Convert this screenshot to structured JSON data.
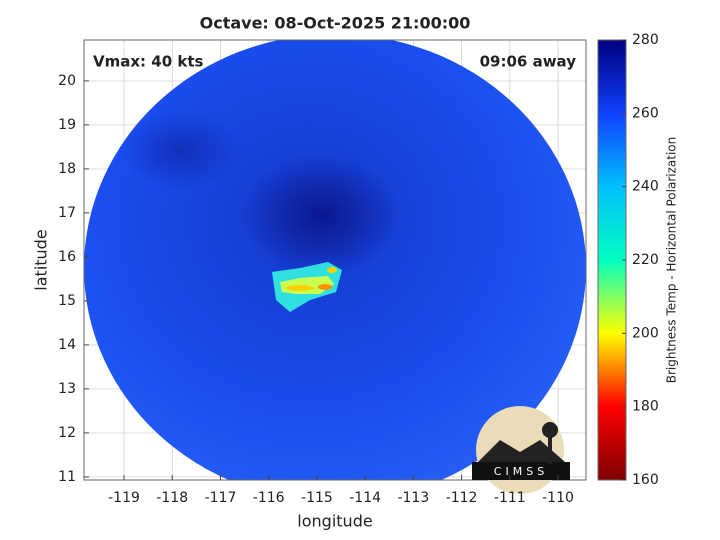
{
  "chart_data": {
    "type": "image",
    "title": "Octave: 08-Oct-2025 21:00:00",
    "annotations": [
      "Vmax: 40 kts",
      "09:06 away"
    ],
    "xlabel": "longitude",
    "ylabel": "latitude",
    "xlim": [
      -119.83,
      -109.42
    ],
    "xticks": [
      -119,
      -118,
      -117,
      -116,
      -115,
      -114,
      -113,
      -112,
      -111,
      -110
    ],
    "ylim": [
      10.93,
      20.93
    ],
    "yticks": [
      11,
      12,
      13,
      14,
      15,
      16,
      17,
      18,
      19,
      20
    ],
    "grid": true,
    "colorbar": {
      "label": "Brightness Temp - Horizontal Polarization",
      "lim": [
        160,
        280
      ],
      "ticks": [
        160,
        180,
        200,
        220,
        240,
        260,
        280
      ],
      "colors": [
        "#800000",
        "#ff0000",
        "#ffff00",
        "#00ffc0",
        "#00c0ff",
        "#1040ff",
        "#000080"
      ]
    },
    "logo": "CIMSS"
  }
}
